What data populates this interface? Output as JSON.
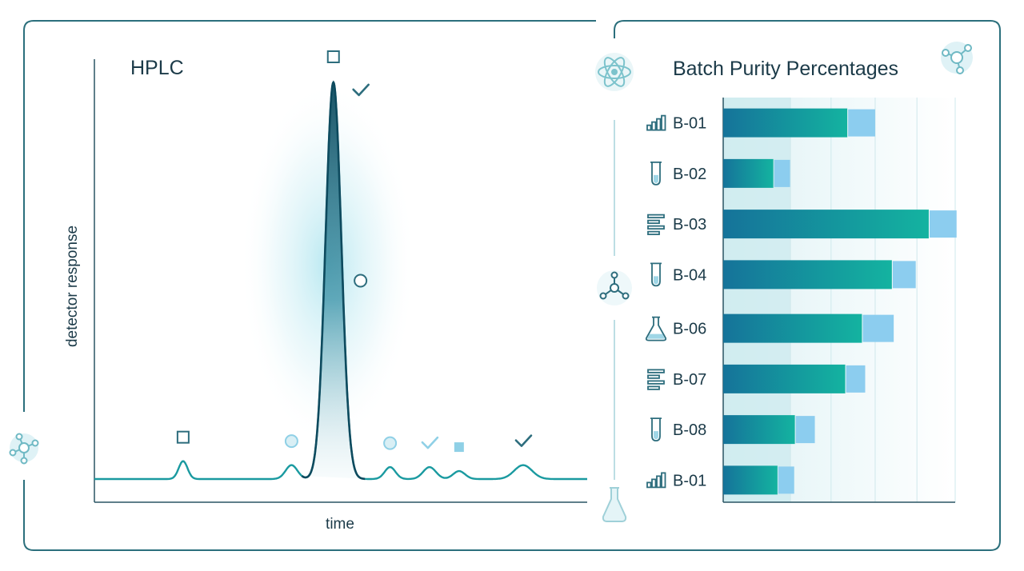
{
  "colors": {
    "frame": "#2b6f7c",
    "line": "#1a9aa0",
    "peak_dark": "#0e4a5e",
    "bar_start": "#15739a",
    "bar_end": "#14b3a0",
    "bar_tip": "#8ccdef",
    "marker": "#2d6d7d",
    "marker_light": "#8fd0e6",
    "accent": "#c9e8ef"
  },
  "chart_data": [
    {
      "type": "line",
      "title": "HPLC",
      "xlabel": "time",
      "ylabel": "detector response",
      "grid": false,
      "baseline": 0.0,
      "peaks": [
        {
          "center": 0.18,
          "height": 0.045,
          "width": 0.009,
          "marker": "square"
        },
        {
          "center": 0.4,
          "height": 0.035,
          "width": 0.012,
          "marker": "circle-light"
        },
        {
          "center": 0.485,
          "height": 1.0,
          "width": 0.016,
          "marker": "square"
        },
        {
          "center": 0.6,
          "height": 0.03,
          "width": 0.011,
          "marker": "circle-light"
        },
        {
          "center": 0.68,
          "height": 0.03,
          "width": 0.013,
          "marker": "check-light"
        },
        {
          "center": 0.74,
          "height": 0.02,
          "width": 0.012,
          "marker": "square-light"
        },
        {
          "center": 0.87,
          "height": 0.035,
          "width": 0.018,
          "marker": "check"
        }
      ],
      "annotations": [
        {
          "marker": "check",
          "x": 0.54,
          "y": 0.98
        },
        {
          "marker": "circle",
          "x": 0.54,
          "y": 0.5
        }
      ]
    },
    {
      "type": "bar",
      "orientation": "horizontal",
      "title": "Batch Purity Percentages",
      "categories": [
        "B-01",
        "B-02",
        "B-03",
        "B-04",
        "B-06",
        "B-07",
        "B-08",
        "B-01"
      ],
      "icons": [
        "bar-chart-icon",
        "test-tube-icon",
        "list-icon",
        "test-tube-icon",
        "flask-icon",
        "list-icon",
        "test-tube-icon",
        "bar-chart-icon"
      ],
      "values": [
        53.5,
        21.6,
        88.6,
        72.7,
        59.8,
        52.6,
        30.9,
        23.4
      ],
      "tip_values": [
        12.0,
        7.2,
        12.0,
        10.3,
        13.7,
        8.6,
        8.6,
        7.2
      ],
      "xlim": [
        0,
        100
      ],
      "grid": true,
      "legend": "none"
    }
  ]
}
